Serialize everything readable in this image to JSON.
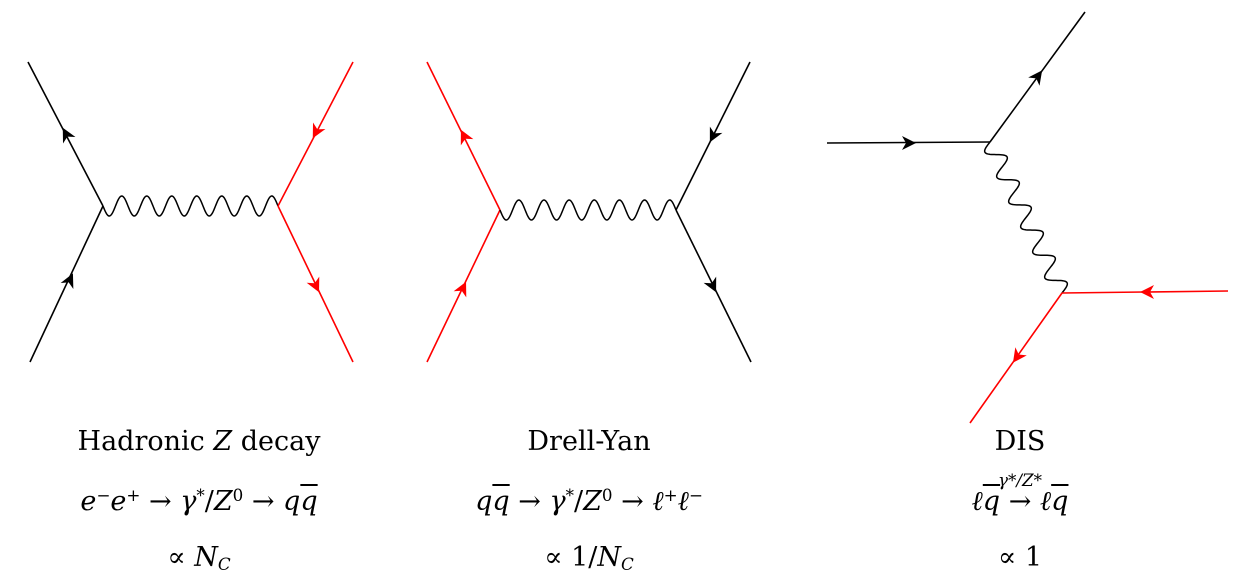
{
  "colors": {
    "fermion_black": "#000000",
    "fermion_red": "#ff0000",
    "boson": "#000000"
  },
  "diagrams": [
    {
      "title": "Hadronic Z decay",
      "title_parts": {
        "pre": "Hadronic ",
        "var": "Z",
        "post": " decay"
      },
      "process": {
        "a": "e",
        "a_sup": "−",
        "b": "e",
        "b_sup": "+",
        "arrow1": "→",
        "gamma": "γ",
        "gamma_sup": "*",
        "slash": "/",
        "Z": "Z",
        "Z_sup": "0",
        "arrow2": "→",
        "q": "q",
        "qbar": "q"
      },
      "scaling": {
        "prop": "∝",
        "var": "N",
        "sub": "C"
      }
    },
    {
      "title": "Drell-Yan",
      "process": {
        "q": "q",
        "qbar": "q",
        "arrow1": "→",
        "gamma": "γ",
        "gamma_sup": "*",
        "slash": "/",
        "Z": "Z",
        "Z_sup": "0",
        "arrow2": "→",
        "l1": "ℓ",
        "l1_sup": "+",
        "l2": "ℓ",
        "l2_sup": "−"
      },
      "scaling": {
        "prop": "∝",
        "num": "1/",
        "var": "N",
        "sub": "C"
      }
    },
    {
      "title": "DIS",
      "process": {
        "l": "ℓ",
        "qbar": "q",
        "arrow": "→",
        "over": "γ*/Z*",
        "l2": "ℓ",
        "qbar2": "q"
      },
      "scaling": {
        "prop": "∝",
        "val": "1"
      }
    }
  ]
}
